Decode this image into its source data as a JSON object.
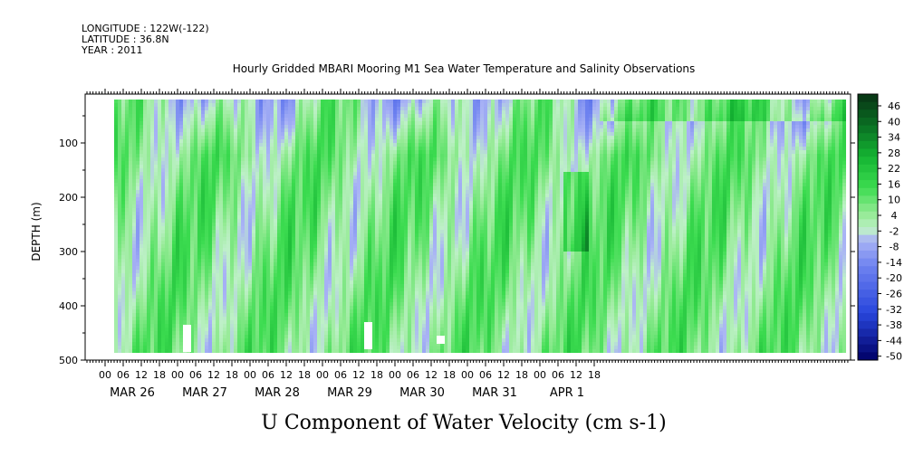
{
  "header": {
    "longitude": "LONGITUDE : 122W(-122)",
    "latitude": "LATITUDE : 36.8N",
    "year": "YEAR : 2011"
  },
  "chart_data": {
    "type": "heatmap",
    "title": "Hourly Gridded MBARI Mooring M1 Sea Water Temperature and Salinity Observations",
    "xlabel": "U Component of Water Velocity (cm s-1)",
    "ylabel": "DEPTH (m)",
    "y_ticks": [
      100,
      200,
      300,
      400,
      500
    ],
    "ylim": [
      500,
      10
    ],
    "x_hour_ticks": [
      "00",
      "06",
      "12",
      "18",
      "00",
      "06",
      "12",
      "18",
      "00",
      "06",
      "12",
      "18",
      "00",
      "06",
      "12",
      "18",
      "00",
      "06",
      "12",
      "18",
      "00",
      "06",
      "12",
      "18",
      "00",
      "06",
      "12",
      "18"
    ],
    "x_date_labels": [
      "MAR 26",
      "MAR 27",
      "MAR 28",
      "MAR 29",
      "MAR 30",
      "MAR 31",
      "APR  1"
    ],
    "colorbar_levels": [
      46,
      40,
      34,
      28,
      22,
      16,
      10,
      4,
      -2,
      -8,
      -14,
      -20,
      -26,
      -32,
      -38,
      -44,
      -50
    ],
    "colorbar_range": [
      -50,
      52
    ],
    "data_depth_range": [
      20,
      485
    ],
    "gaps": [
      {
        "time_hours": 27,
        "depth_from": 435,
        "depth_to": 485
      },
      {
        "time_hours": 87,
        "depth_from": 430,
        "depth_to": 480
      },
      {
        "time_hours": 111,
        "depth_from": 455,
        "depth_to": 470
      }
    ],
    "color_scale": {
      "negative_deep": "#000066",
      "negative_mid": "#3355dd",
      "negative_light": "#9aa8f0",
      "near_zero": "#b8f0b8",
      "positive_mid": "#22dd44",
      "positive_deep": "#0a3a18"
    }
  }
}
